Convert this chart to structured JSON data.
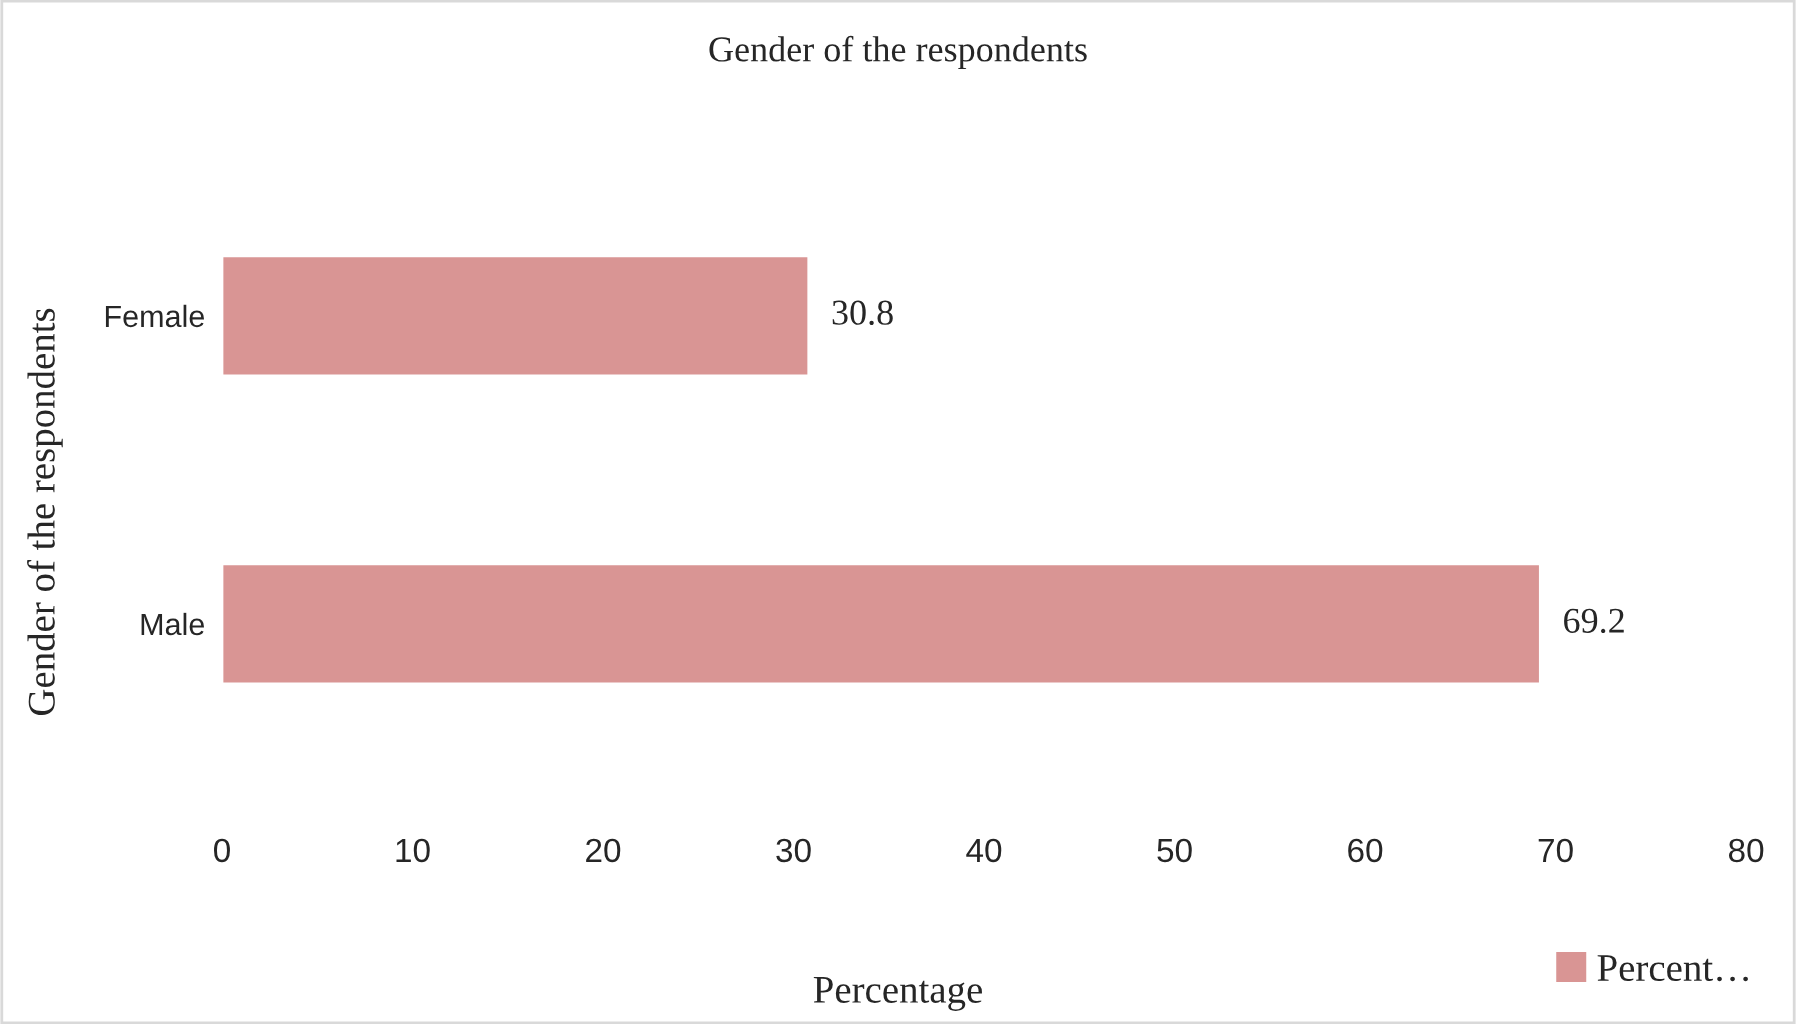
{
  "chart_data": {
    "type": "bar",
    "orientation": "horizontal",
    "title": "Gender of the respondents",
    "xlabel": "Percentage",
    "ylabel": "Gender of the respondents",
    "categories": [
      "Female",
      "Male"
    ],
    "series": [
      {
        "name": "Percent…",
        "color": "#d99594",
        "values": [
          30.8,
          69.2
        ]
      }
    ],
    "xlim": [
      0,
      80
    ],
    "xticks": [
      0,
      10,
      20,
      30,
      40,
      50,
      60,
      70,
      80
    ],
    "grid": false,
    "legend": "bottom right",
    "data_labels": true
  }
}
